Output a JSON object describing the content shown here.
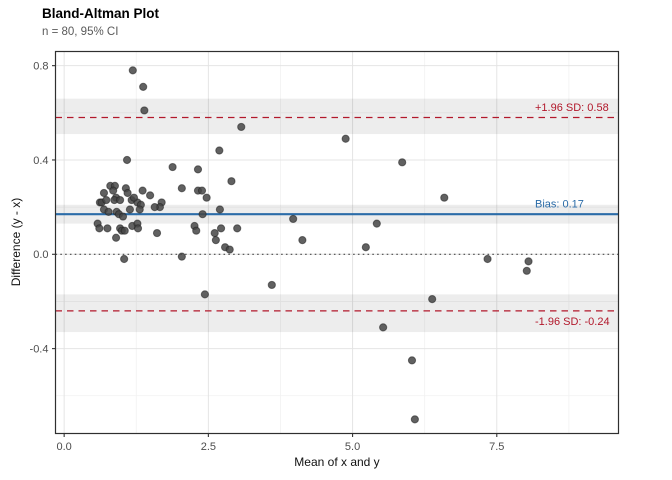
{
  "header": {
    "title": "Bland-Altman Plot",
    "subtitle": "n = 80, 95% CI"
  },
  "chart_data": {
    "type": "scatter",
    "title": "Bland-Altman Plot",
    "subtitle": "n = 80, 95% CI",
    "xlabel": "Mean of x and y",
    "ylabel": "Difference (y - x)",
    "xlim": [
      -0.15,
      9.61
    ],
    "ylim": [
      -0.76,
      0.86
    ],
    "xticks": [
      0.0,
      2.5,
      5.0,
      7.5
    ],
    "xtick_labels": [
      "0.0",
      "2.5",
      "5.0",
      "7.5"
    ],
    "xticks_minor": [
      1.25,
      3.75,
      6.25,
      8.75
    ],
    "yticks": [
      -0.4,
      0.0,
      0.4,
      0.8
    ],
    "ytick_labels": [
      "-0.4",
      "0.0",
      "0.4",
      "0.8"
    ],
    "yticks_minor": [
      -0.6,
      -0.2,
      0.2,
      0.6
    ],
    "grid": true,
    "legend": false,
    "lines": [
      {
        "id": "upper_loa",
        "value": 0.58,
        "label": "+1.96 SD: 0.58",
        "style": "dashed",
        "color": "#b2182b",
        "ci": [
          0.51,
          0.66
        ],
        "label_below": false
      },
      {
        "id": "bias",
        "value": 0.17,
        "label": "Bias: 0.17",
        "style": "solid",
        "color": "#2b6ca8",
        "ci": [
          0.13,
          0.21
        ],
        "label_below": false
      },
      {
        "id": "lower_loa",
        "value": -0.24,
        "label": "-1.96 SD: -0.24",
        "style": "dashed",
        "color": "#b2182b",
        "ci": [
          -0.33,
          -0.17
        ],
        "label_below": true
      },
      {
        "id": "zero",
        "value": 0.0,
        "label": "",
        "style": "dotted",
        "color": "#4a4a4a",
        "ci": null,
        "label_below": false
      }
    ],
    "points": [
      [
        1.19,
        0.78
      ],
      [
        1.37,
        0.71
      ],
      [
        1.39,
        0.61
      ],
      [
        3.07,
        0.54
      ],
      [
        4.88,
        0.49
      ],
      [
        2.69,
        0.44
      ],
      [
        1.09,
        0.4
      ],
      [
        5.86,
        0.39
      ],
      [
        1.88,
        0.37
      ],
      [
        2.32,
        0.36
      ],
      [
        2.9,
        0.31
      ],
      [
        0.8,
        0.29
      ],
      [
        0.88,
        0.29
      ],
      [
        0.69,
        0.26
      ],
      [
        0.85,
        0.27
      ],
      [
        0.9,
        0.24
      ],
      [
        1.07,
        0.28
      ],
      [
        1.1,
        0.26
      ],
      [
        1.36,
        0.27
      ],
      [
        2.04,
        0.28
      ],
      [
        2.32,
        0.27
      ],
      [
        2.39,
        0.27
      ],
      [
        2.47,
        0.24
      ],
      [
        6.59,
        0.24
      ],
      [
        1.49,
        0.25
      ],
      [
        0.62,
        0.22
      ],
      [
        0.65,
        0.22
      ],
      [
        0.73,
        0.23
      ],
      [
        0.87,
        0.23
      ],
      [
        0.97,
        0.23
      ],
      [
        1.17,
        0.23
      ],
      [
        1.27,
        0.22
      ],
      [
        1.21,
        0.24
      ],
      [
        1.33,
        0.21
      ],
      [
        1.69,
        0.22
      ],
      [
        1.66,
        0.2
      ],
      [
        1.57,
        0.2
      ],
      [
        2.7,
        0.19
      ],
      [
        0.69,
        0.19
      ],
      [
        0.77,
        0.18
      ],
      [
        0.91,
        0.18
      ],
      [
        0.95,
        0.17
      ],
      [
        1.02,
        0.16
      ],
      [
        1.14,
        0.19
      ],
      [
        1.31,
        0.19
      ],
      [
        2.4,
        0.17
      ],
      [
        3.97,
        0.15
      ],
      [
        5.42,
        0.13
      ],
      [
        0.58,
        0.13
      ],
      [
        0.61,
        0.11
      ],
      [
        0.75,
        0.11
      ],
      [
        0.97,
        0.11
      ],
      [
        1.0,
        0.1
      ],
      [
        1.05,
        0.1
      ],
      [
        1.18,
        0.12
      ],
      [
        1.27,
        0.13
      ],
      [
        1.28,
        0.11
      ],
      [
        0.9,
        0.07
      ],
      [
        1.61,
        0.09
      ],
      [
        2.26,
        0.12
      ],
      [
        2.29,
        0.1
      ],
      [
        2.61,
        0.09
      ],
      [
        2.72,
        0.11
      ],
      [
        3.0,
        0.11
      ],
      [
        2.63,
        0.06
      ],
      [
        4.13,
        0.06
      ],
      [
        5.23,
        0.03
      ],
      [
        2.79,
        0.03
      ],
      [
        2.87,
        0.02
      ],
      [
        1.04,
        -0.02
      ],
      [
        2.04,
        -0.01
      ],
      [
        7.34,
        -0.02
      ],
      [
        8.05,
        -0.03
      ],
      [
        8.02,
        -0.07
      ],
      [
        3.6,
        -0.13
      ],
      [
        2.44,
        -0.17
      ],
      [
        6.38,
        -0.19
      ],
      [
        5.53,
        -0.31
      ],
      [
        6.03,
        -0.45
      ],
      [
        6.08,
        -0.7
      ]
    ]
  },
  "colors": {
    "bias_blue": "#2b6ca8",
    "loa_red": "#b2182b",
    "point_fill": "#454545",
    "point_stroke": "#1f1f1f",
    "band_fill": "rgba(0,0,0,0.072)",
    "grid_major": "#e4e4e4",
    "grid_minor": "#f1f1f1",
    "panel_border": "#2f2f2f",
    "tick_label": "#4d4d4d",
    "tick_mark": "#333333"
  }
}
